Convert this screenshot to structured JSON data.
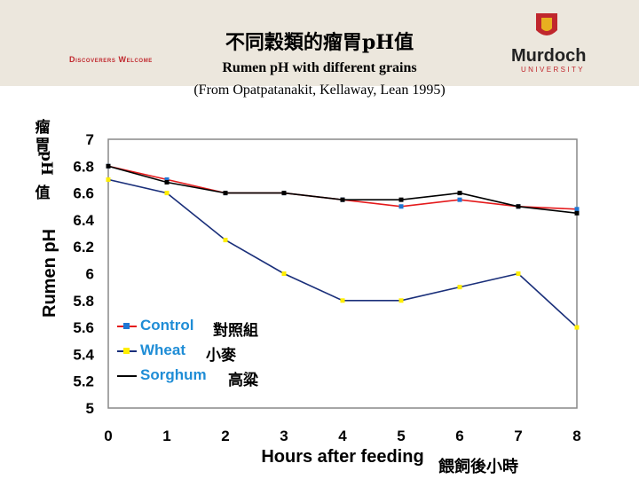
{
  "header": {
    "tagline": "Discoverers Welcome",
    "title_zh": "不同穀類的瘤胃pH值",
    "title_en": "Rumen pH with different grains",
    "citation": "(From Opatpatanakit, Kellaway, Lean 1995)",
    "logo_name": "Murdoch",
    "logo_sub": "UNIVERSITY",
    "brand_red": "#c0272d",
    "brand_gold": "#e8b020"
  },
  "chart_data": {
    "type": "line",
    "x": [
      0,
      1,
      2,
      3,
      4,
      5,
      6,
      7,
      8
    ],
    "xlabel": "Hours after feeding",
    "xlabel_zh": "餵飼後小時",
    "ylabel": "Rumen pH",
    "ylabel_zh": [
      "瘤",
      "胃",
      "pH",
      "值"
    ],
    "ylim": [
      5,
      7
    ],
    "yticks": [
      "7",
      "6.8",
      "6.6",
      "6.4",
      "6.2",
      "6",
      "5.8",
      "5.6",
      "5.4",
      "5.2",
      "5"
    ],
    "xticks": [
      "0",
      "1",
      "2",
      "3",
      "4",
      "5",
      "6",
      "7",
      "8"
    ],
    "grid": false,
    "legend_position": "bottom-left",
    "series": [
      {
        "name": "Control",
        "name_zh": "對照組",
        "line_color": "#e41a1c",
        "marker_color": "#1f77d4",
        "values": [
          6.8,
          6.7,
          6.6,
          6.6,
          6.55,
          6.5,
          6.55,
          6.5,
          6.48
        ]
      },
      {
        "name": "Wheat",
        "name_zh": "小麥",
        "line_color": "#1a2f7a",
        "marker_color": "#ffee00",
        "values": [
          6.7,
          6.6,
          6.25,
          6.0,
          5.8,
          5.8,
          5.9,
          6.0,
          5.6
        ]
      },
      {
        "name": "Sorghum",
        "name_zh": "高粱",
        "line_color": "#000000",
        "marker_color": "#000000",
        "values": [
          6.8,
          6.68,
          6.6,
          6.6,
          6.55,
          6.55,
          6.6,
          6.5,
          6.45
        ]
      }
    ]
  }
}
